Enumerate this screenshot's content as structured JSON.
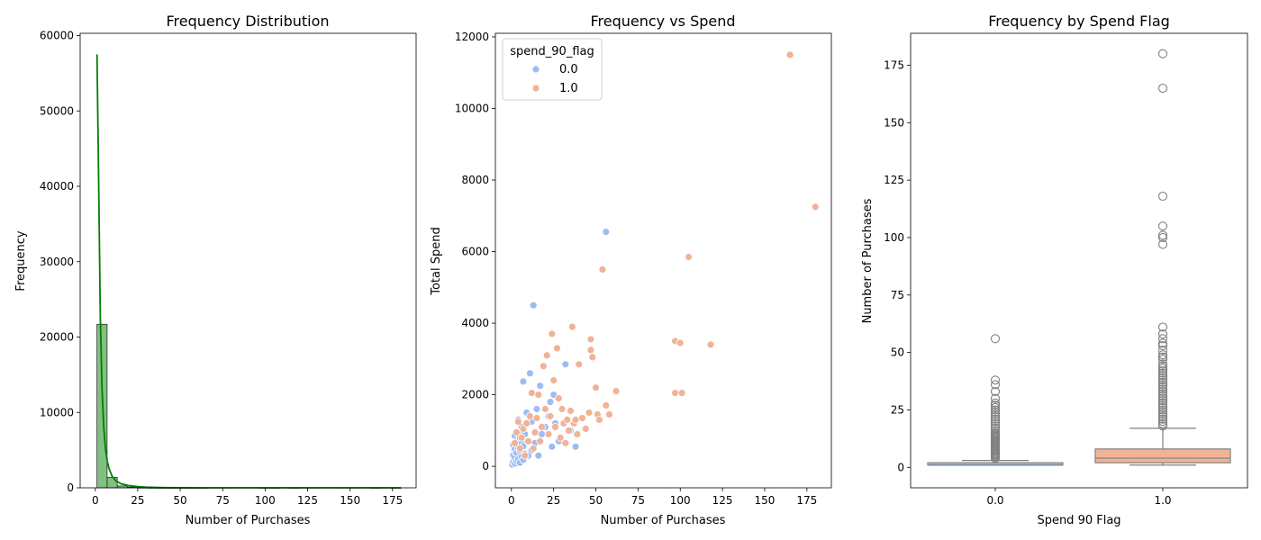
{
  "chart_data": [
    {
      "type": "bar",
      "title": "Frequency Distribution",
      "xlabel": "Number of Purchases",
      "ylabel": "Frequency",
      "xlim": [
        -8.9,
        188.9
      ],
      "ylim": [
        0,
        60300
      ],
      "xticks": [
        0,
        25,
        50,
        75,
        100,
        125,
        150,
        175
      ],
      "yticks": [
        0,
        10000,
        20000,
        30000,
        40000,
        50000,
        60000
      ],
      "colors": {
        "bar": "#6ab56a",
        "bar_edge": "#1a1a1a",
        "kde": "#008000"
      },
      "bins": [
        {
          "x0": 1.0,
          "x1": 6.97,
          "count": 21700
        },
        {
          "x0": 6.97,
          "x1": 12.93,
          "count": 1400
        },
        {
          "x0": 12.93,
          "x1": 18.9,
          "count": 250
        },
        {
          "x0": 18.9,
          "x1": 24.87,
          "count": 90
        },
        {
          "x0": 24.87,
          "x1": 30.83,
          "count": 35
        },
        {
          "x0": 30.83,
          "x1": 36.8,
          "count": 15
        },
        {
          "x0": 36.8,
          "x1": 42.77,
          "count": 8
        },
        {
          "x0": 42.77,
          "x1": 48.73,
          "count": 5
        },
        {
          "x0": 48.73,
          "x1": 54.7,
          "count": 4
        },
        {
          "x0": 54.7,
          "x1": 60.67,
          "count": 3
        },
        {
          "x0": 60.67,
          "x1": 66.63,
          "count": 1
        },
        {
          "x0": 96.43,
          "x1": 102.4,
          "count": 4
        },
        {
          "x0": 102.4,
          "x1": 108.37,
          "count": 1
        },
        {
          "x0": 114.33,
          "x1": 120.3,
          "count": 1
        },
        {
          "x0": 162.07,
          "x1": 168.03,
          "count": 1
        },
        {
          "x0": 174.0,
          "x1": 180.0,
          "count": 1
        }
      ],
      "kde": {
        "name": "KDE",
        "x": [
          1,
          2,
          3,
          4,
          5,
          6,
          7,
          8,
          10,
          12,
          15,
          20,
          25,
          30,
          40,
          60,
          100,
          180
        ],
        "y": [
          57500,
          40000,
          22500,
          13000,
          8000,
          5200,
          3600,
          2600,
          1500,
          950,
          550,
          280,
          150,
          80,
          25,
          5,
          0,
          0
        ]
      }
    },
    {
      "type": "scatter",
      "title": "Frequency vs Spend",
      "xlabel": "Number of Purchases",
      "ylabel": "Total Spend",
      "xlim": [
        -9.5,
        189.5
      ],
      "ylim": [
        -600,
        12100
      ],
      "xticks": [
        0,
        25,
        50,
        75,
        100,
        125,
        150,
        175
      ],
      "yticks": [
        0,
        2000,
        4000,
        6000,
        8000,
        10000,
        12000
      ],
      "legend": {
        "title": "spend_90_flag",
        "placement": "upper-left",
        "entries": [
          {
            "label": "0.0",
            "color": "#9ebcf4"
          },
          {
            "label": "1.0",
            "color": "#f0b396"
          }
        ]
      },
      "series": [
        {
          "name": "0.0",
          "color": "#9ebcf4",
          "points": [
            [
              0.5,
              50
            ],
            [
              1,
              120
            ],
            [
              1,
              300
            ],
            [
              1,
              600
            ],
            [
              2,
              80
            ],
            [
              2,
              250
            ],
            [
              2,
              480
            ],
            [
              2,
              850
            ],
            [
              3,
              150
            ],
            [
              3,
              380
            ],
            [
              3,
              700
            ],
            [
              4,
              200
            ],
            [
              4,
              520
            ],
            [
              4,
              950
            ],
            [
              4,
              1300
            ],
            [
              5,
              100
            ],
            [
              5,
              430
            ],
            [
              5,
              800
            ],
            [
              6,
              260
            ],
            [
              6,
              640
            ],
            [
              6,
              1100
            ],
            [
              7,
              180
            ],
            [
              7,
              560
            ],
            [
              7,
              2370
            ],
            [
              8,
              350
            ],
            [
              8,
              900
            ],
            [
              9,
              1500
            ],
            [
              10,
              300
            ],
            [
              10,
              720
            ],
            [
              11,
              2600
            ],
            [
              12,
              450
            ],
            [
              12,
              1250
            ],
            [
              13,
              4500
            ],
            [
              14,
              650
            ],
            [
              15,
              1600
            ],
            [
              16,
              300
            ],
            [
              17,
              2250
            ],
            [
              18,
              900
            ],
            [
              20,
              1100
            ],
            [
              22,
              1400
            ],
            [
              23,
              1800
            ],
            [
              24,
              550
            ],
            [
              25,
              2000
            ],
            [
              26,
              1200
            ],
            [
              28,
              700
            ],
            [
              32,
              2850
            ],
            [
              35,
              1000
            ],
            [
              38,
              550
            ],
            [
              56,
              6550
            ]
          ]
        },
        {
          "name": "1.0",
          "color": "#f0b396",
          "points": [
            [
              2,
              650
            ],
            [
              3,
              950
            ],
            [
              4,
              1250
            ],
            [
              5,
              500
            ],
            [
              6,
              800
            ],
            [
              7,
              1050
            ],
            [
              8,
              300
            ],
            [
              9,
              1200
            ],
            [
              10,
              700
            ],
            [
              11,
              1400
            ],
            [
              12,
              2050
            ],
            [
              13,
              500
            ],
            [
              14,
              950
            ],
            [
              15,
              1350
            ],
            [
              16,
              2000
            ],
            [
              17,
              700
            ],
            [
              18,
              1100
            ],
            [
              19,
              2800
            ],
            [
              20,
              1600
            ],
            [
              21,
              3100
            ],
            [
              22,
              900
            ],
            [
              23,
              1400
            ],
            [
              24,
              3700
            ],
            [
              25,
              2400
            ],
            [
              26,
              1100
            ],
            [
              27,
              3300
            ],
            [
              28,
              1900
            ],
            [
              29,
              800
            ],
            [
              30,
              1600
            ],
            [
              31,
              1200
            ],
            [
              32,
              650
            ],
            [
              33,
              1300
            ],
            [
              34,
              1000
            ],
            [
              35,
              1550
            ],
            [
              36,
              3900
            ],
            [
              37,
              1200
            ],
            [
              38,
              1300
            ],
            [
              39,
              900
            ],
            [
              40,
              2850
            ],
            [
              42,
              1350
            ],
            [
              44,
              1050
            ],
            [
              46,
              1500
            ],
            [
              47,
              3550
            ],
            [
              47,
              3250
            ],
            [
              48,
              3050
            ],
            [
              50,
              2200
            ],
            [
              51,
              1450
            ],
            [
              52,
              1300
            ],
            [
              54,
              5500
            ],
            [
              56,
              1700
            ],
            [
              58,
              1450
            ],
            [
              62,
              2100
            ],
            [
              97,
              3500
            ],
            [
              97,
              2050
            ],
            [
              100,
              3450
            ],
            [
              101,
              2050
            ],
            [
              105,
              5850
            ],
            [
              118,
              3400
            ],
            [
              165,
              11500
            ],
            [
              180,
              7250
            ]
          ]
        }
      ]
    },
    {
      "type": "box",
      "title": "Frequency by Spend Flag",
      "xlabel": "Spend 90 Flag",
      "ylabel": "Number of Purchases",
      "categories": [
        "0.0",
        "1.0"
      ],
      "ylim": [
        -8.9,
        188.9
      ],
      "yticks": [
        0,
        25,
        50,
        75,
        100,
        125,
        150,
        175
      ],
      "boxes": [
        {
          "name": "0.0",
          "color": "#9ebcf4",
          "q1": 1,
          "median": 1,
          "q3": 2,
          "whisker_low": 1,
          "whisker_high": 3,
          "outliers": [
            4,
            4.5,
            5,
            5.5,
            6,
            6.5,
            7,
            7.5,
            8,
            8.5,
            9,
            9.5,
            10,
            10.5,
            11,
            11.5,
            12,
            12.5,
            13,
            13.5,
            14,
            14.5,
            15,
            16,
            17,
            18,
            19,
            20,
            21,
            22,
            23,
            24,
            25,
            26,
            27,
            28,
            30,
            33,
            36,
            38,
            56
          ]
        },
        {
          "name": "1.0",
          "color": "#f0b396",
          "q1": 2,
          "median": 4,
          "q3": 8,
          "whisker_low": 1,
          "whisker_high": 17,
          "outliers": [
            18,
            19,
            20,
            21,
            22,
            23,
            24,
            25,
            26,
            27,
            28,
            29,
            30,
            31,
            32,
            33,
            34,
            35,
            36,
            37,
            38,
            39,
            40,
            41,
            42,
            43,
            44,
            45,
            47,
            48,
            49,
            51,
            53,
            54,
            56,
            58,
            61,
            97,
            100,
            101,
            105,
            118,
            165,
            180
          ]
        }
      ]
    }
  ]
}
